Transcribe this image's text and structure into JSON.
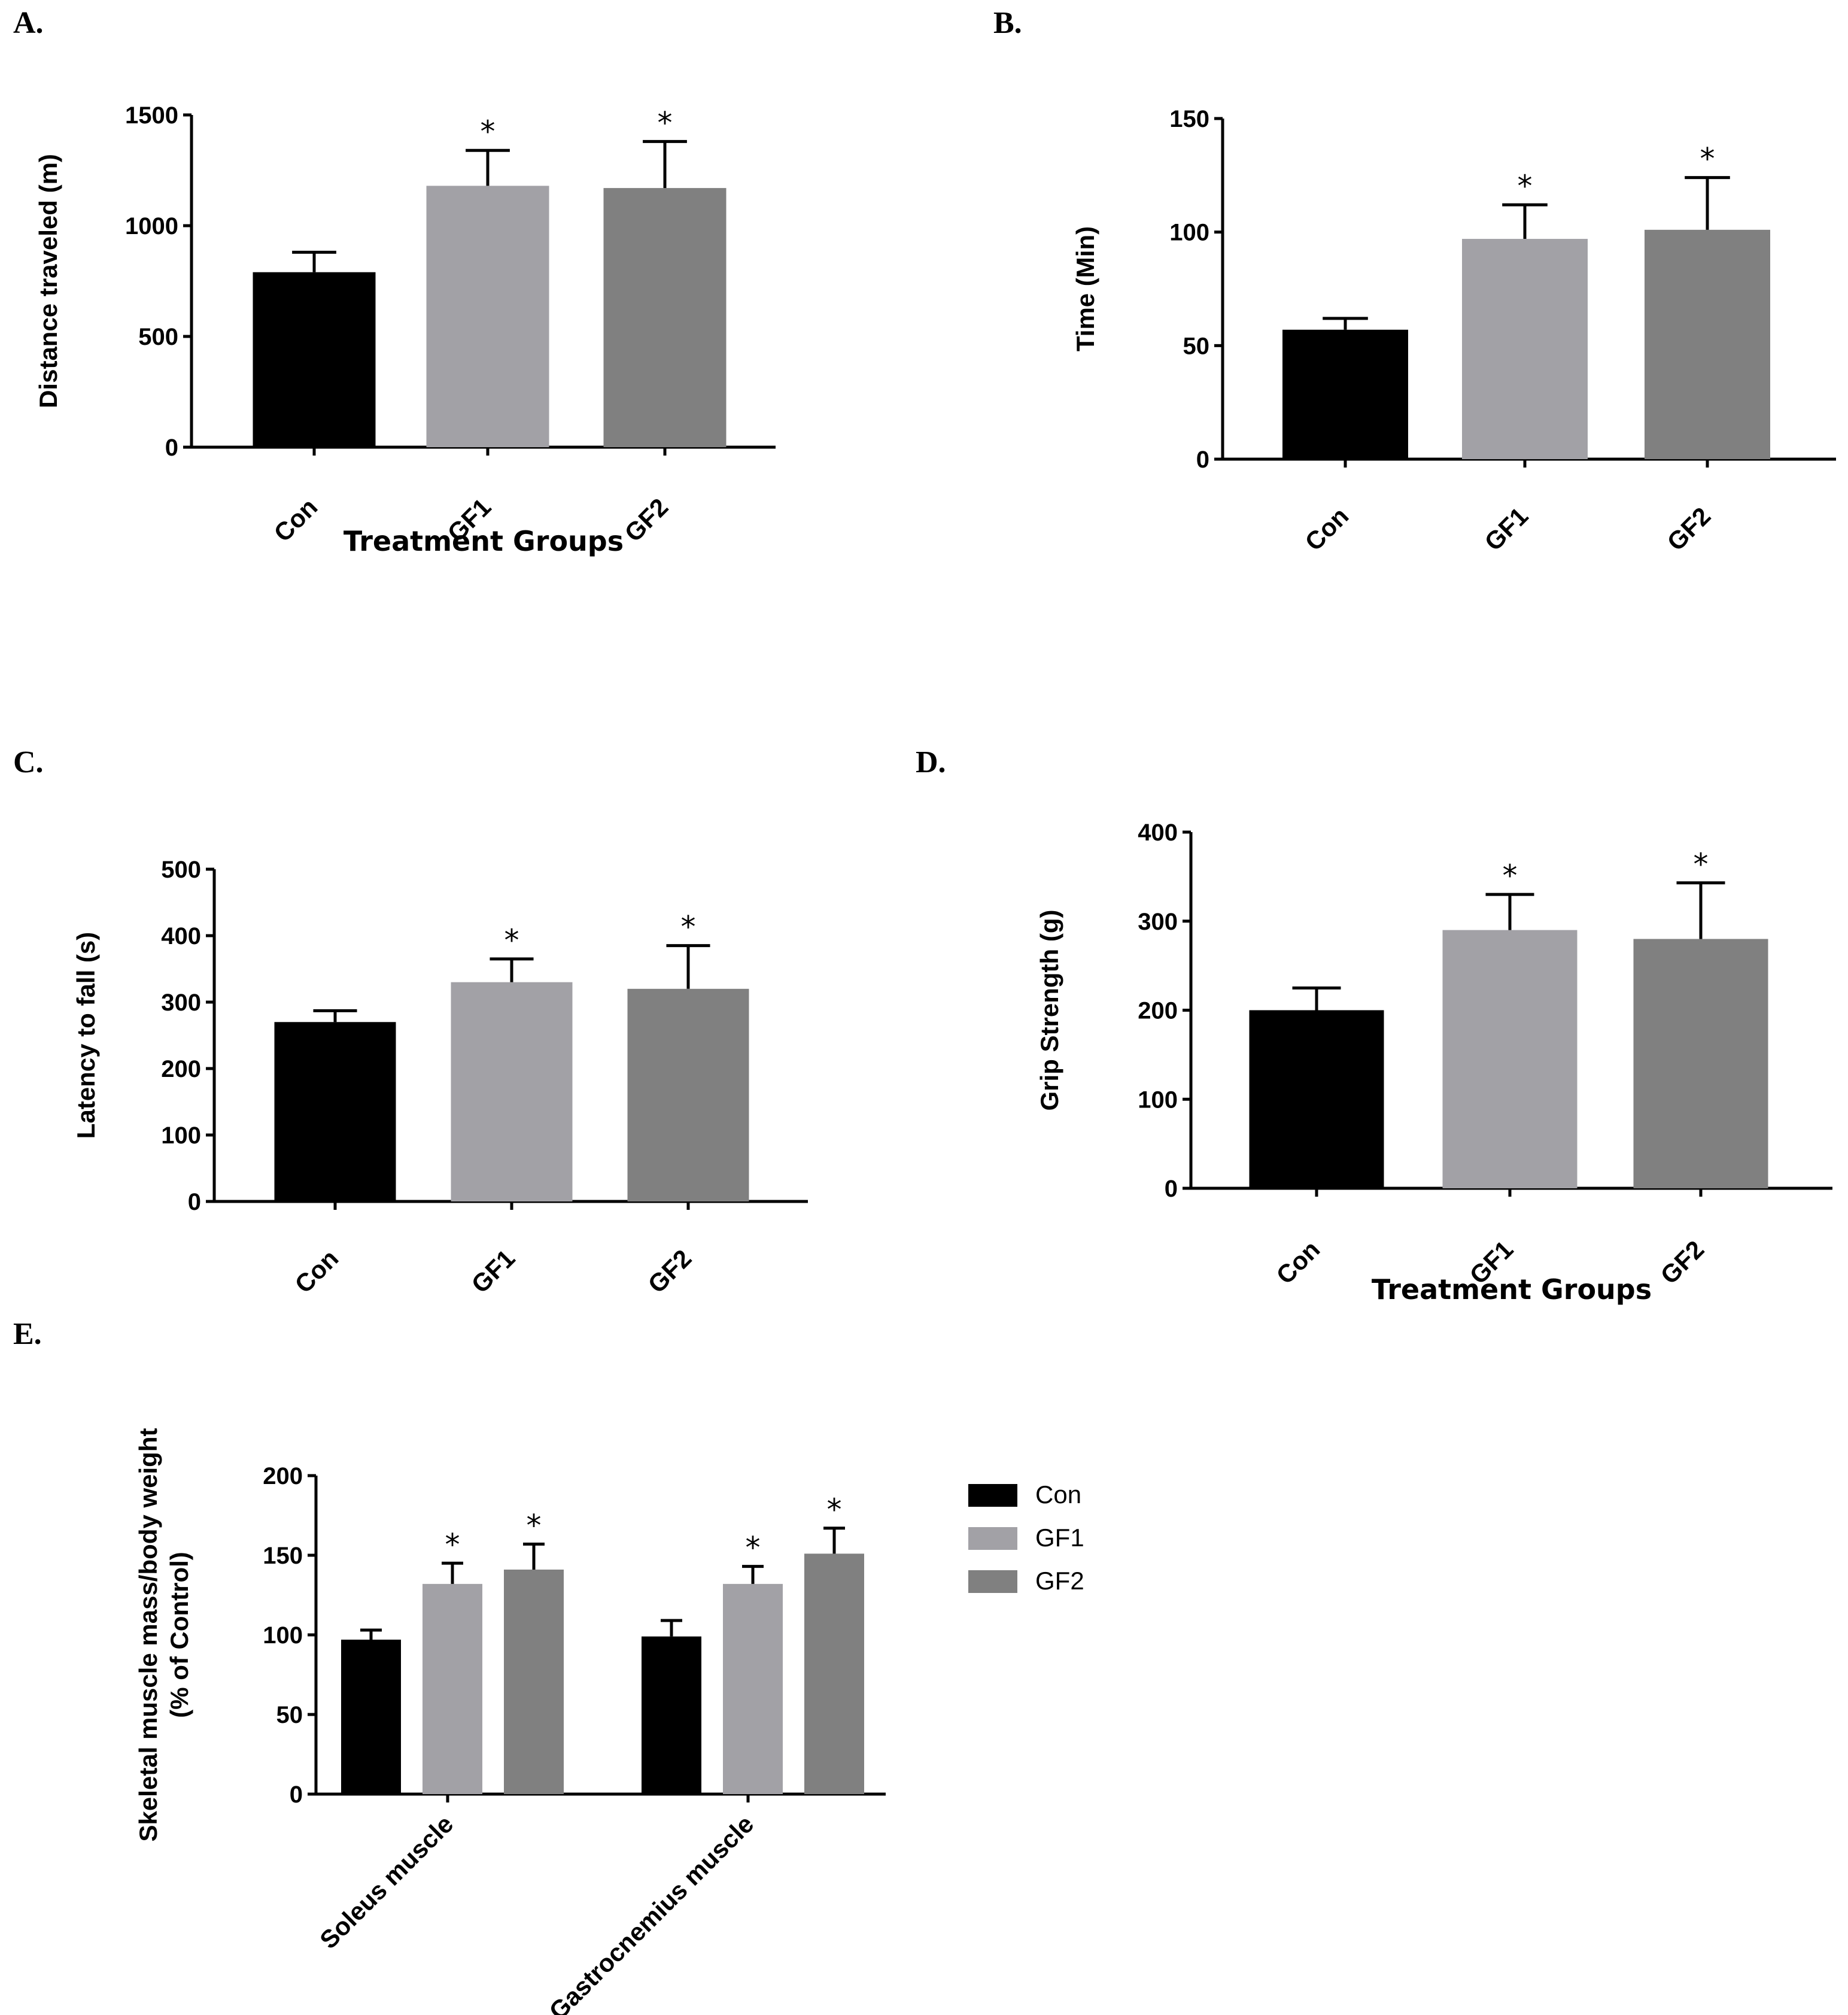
{
  "colors": {
    "Con": "#000000",
    "GF1": "#a2a1a6",
    "GF2": "#808080"
  },
  "chart_data": [
    {
      "id": "A",
      "panel_label": "A.",
      "type": "bar",
      "title": "",
      "categories": [
        "Con",
        "GF1",
        "GF2"
      ],
      "values": [
        790,
        1180,
        1170
      ],
      "errors": [
        90,
        160,
        210
      ],
      "significance": [
        "",
        "*",
        "*"
      ],
      "ylabel": "Distance traveled (m)",
      "xlabel": "Treatment Groups",
      "ylim": [
        0,
        1500
      ],
      "yticks": [
        0,
        500,
        1000,
        1500
      ]
    },
    {
      "id": "B",
      "panel_label": "B.",
      "type": "bar",
      "title": "",
      "categories": [
        "Con",
        "GF1",
        "GF2"
      ],
      "values": [
        57,
        97,
        101
      ],
      "errors": [
        5,
        15,
        23
      ],
      "significance": [
        "",
        "*",
        "*"
      ],
      "ylabel": "Time (Min)",
      "xlabel": "",
      "ylim": [
        0,
        150
      ],
      "yticks": [
        0,
        50,
        100,
        150
      ]
    },
    {
      "id": "C",
      "panel_label": "C.",
      "type": "bar",
      "title": "",
      "categories": [
        "Con",
        "GF1",
        "GF2"
      ],
      "values": [
        270,
        330,
        320
      ],
      "errors": [
        17,
        35,
        65
      ],
      "significance": [
        "",
        "*",
        "*"
      ],
      "ylabel": "Latency to fall (s)",
      "xlabel": "",
      "ylim": [
        0,
        500
      ],
      "yticks": [
        0,
        100,
        200,
        300,
        400,
        500
      ]
    },
    {
      "id": "D",
      "panel_label": "D.",
      "type": "bar",
      "title": "",
      "categories": [
        "Con",
        "GF1",
        "GF2"
      ],
      "values": [
        200,
        290,
        280
      ],
      "errors": [
        25,
        40,
        63
      ],
      "significance": [
        "",
        "*",
        "*"
      ],
      "ylabel": "Grip Strength (g)",
      "xlabel": "Treatment Groups",
      "ylim": [
        0,
        400
      ],
      "yticks": [
        0,
        100,
        200,
        300,
        400
      ]
    },
    {
      "id": "E",
      "panel_label": "E.",
      "type": "bar",
      "title": "",
      "categories": [
        "Soleus muscle",
        "Gastrocnemius muscle"
      ],
      "series": [
        {
          "name": "Con",
          "values": [
            97,
            99
          ],
          "errors": [
            6,
            10
          ],
          "significance": [
            "",
            ""
          ]
        },
        {
          "name": "GF1",
          "values": [
            132,
            132
          ],
          "errors": [
            13,
            11
          ],
          "significance": [
            "*",
            "*"
          ]
        },
        {
          "name": "GF2",
          "values": [
            141,
            151
          ],
          "errors": [
            16,
            16
          ],
          "significance": [
            "*",
            "*"
          ]
        }
      ],
      "ylabel": [
        "Skeletal muscle mass/body weight",
        "(% of Control)"
      ],
      "xlabel": "",
      "ylim": [
        0,
        200
      ],
      "yticks": [
        0,
        50,
        100,
        150,
        200
      ],
      "legend": [
        "Con",
        "GF1",
        "GF2"
      ],
      "legend_position": "right"
    }
  ]
}
